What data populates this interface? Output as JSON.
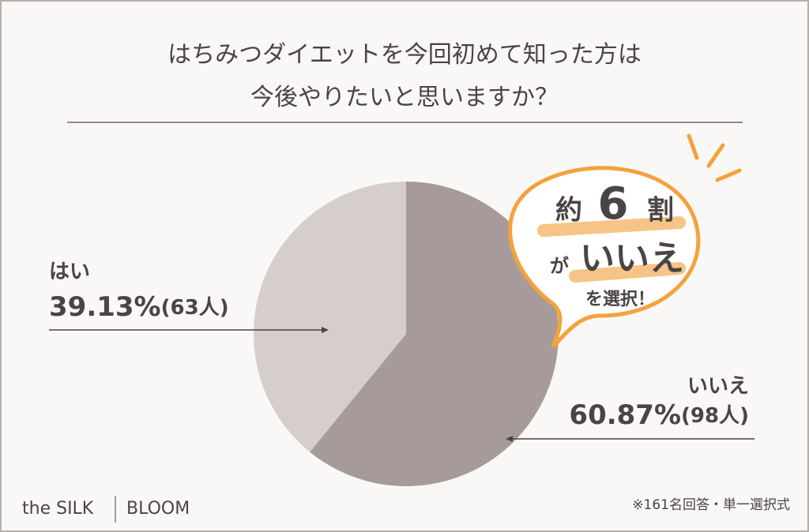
{
  "chart_data": {
    "type": "pie",
    "title": [
      "はちみつダイエットを今回初めて知った方は",
      "今後やりたいと思いますか？"
    ],
    "categories": [
      "はい",
      "いいえ"
    ],
    "values": [
      39.13,
      60.87
    ],
    "value_labels": [
      "39.13%",
      "60.87%"
    ],
    "count_labels": [
      "(63人)",
      "(98人)"
    ],
    "colors": [
      "#d5cecd",
      "#a69b9a"
    ],
    "annotation": [
      "約",
      "6",
      "割",
      "が",
      "いいえ",
      "を選択！"
    ],
    "note": "※161名回答・単一選択式",
    "brand": [
      "the SILK",
      "BLOOM"
    ]
  }
}
